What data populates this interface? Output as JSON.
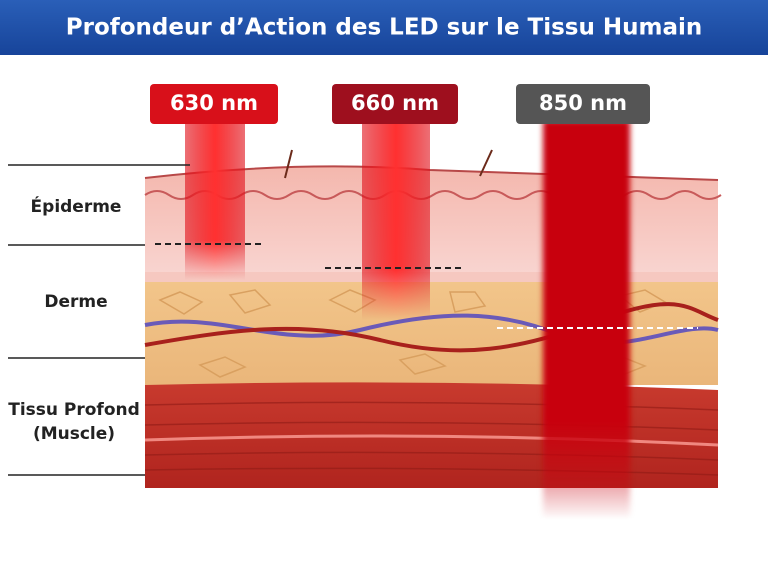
{
  "header": {
    "title": "Profondeur d’Action des LED sur le Tissu Humain"
  },
  "beams": [
    {
      "label": "630 nm"
    },
    {
      "label": "660 nm"
    },
    {
      "label": "850 nm"
    }
  ],
  "layers": [
    {
      "lines": [
        "Épiderme"
      ]
    },
    {
      "lines": [
        "Derme"
      ]
    },
    {
      "lines": [
        "Tissu Profond",
        "(Muscle)"
      ]
    }
  ]
}
